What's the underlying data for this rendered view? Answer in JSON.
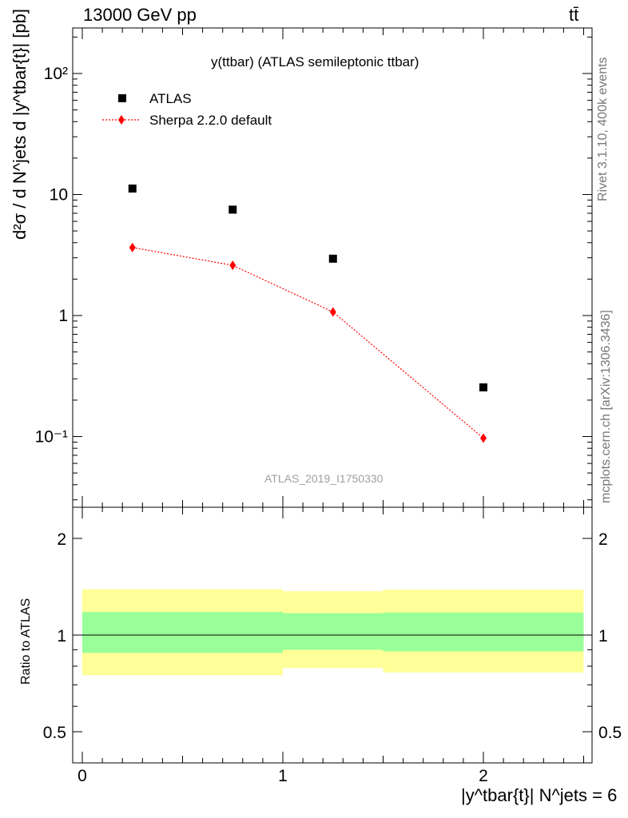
{
  "header": {
    "left": "13000 GeV pp",
    "right": "tt̄"
  },
  "side_labels": {
    "rivet": "Rivet 3.1.10,  400k events",
    "mcplots": "mcplots.cern.ch [arXiv:1306.3436]"
  },
  "chart_data": [
    {
      "type": "scatter",
      "title": "y(ttbar) (ATLAS semileptonic ttbar)",
      "ylabel": "d²σ / d N^jets d |y^tbar{t}| [pb]",
      "yscale": "log",
      "ylim": [
        0.03,
        250
      ],
      "xlim": [
        -0.1,
        2.55
      ],
      "y_ticks": [
        {
          "value": 100,
          "label": "10²"
        },
        {
          "value": 10,
          "label": "10"
        },
        {
          "value": 1,
          "label": "1"
        },
        {
          "value": 0.1,
          "label": "10⁻¹"
        }
      ],
      "watermark": "ATLAS_2019_I1750330",
      "legend_position": "top-left",
      "series": [
        {
          "name": "ATLAS",
          "color": "#000000",
          "marker": "square",
          "x": [
            0.25,
            0.75,
            1.25,
            2.0
          ],
          "y": [
            11.2,
            7.5,
            2.95,
            0.255
          ]
        },
        {
          "name": "Sherpa 2.2.0 default",
          "color": "#ff0000",
          "marker": "diamond",
          "line": "dotted",
          "x": [
            0.25,
            0.75,
            1.25,
            2.0
          ],
          "y": [
            3.65,
            2.6,
            1.07,
            0.097
          ]
        }
      ]
    },
    {
      "type": "area",
      "ylabel": "Ratio to ATLAS",
      "yscale": "log",
      "ylim": [
        0.4,
        2.35
      ],
      "y_ticks": [
        {
          "value": 2,
          "label": "2"
        },
        {
          "value": 1,
          "label": "1"
        },
        {
          "value": 0.5,
          "label": "0.5"
        }
      ],
      "x_ticks": [
        {
          "value": 0,
          "label": "0"
        },
        {
          "value": 1,
          "label": "1"
        },
        {
          "value": 2,
          "label": "2"
        }
      ],
      "reference_line": 1,
      "bands": {
        "edges": [
          0,
          0.5,
          1.0,
          1.5,
          2.5
        ],
        "yellow": {
          "color": "#ffff99",
          "low": [
            0.75,
            0.75,
            0.79,
            0.765
          ],
          "high": [
            1.39,
            1.39,
            1.37,
            1.385
          ]
        },
        "green": {
          "color": "#99ff99",
          "low": [
            0.88,
            0.88,
            0.9,
            0.89
          ],
          "high": [
            1.18,
            1.18,
            1.17,
            1.175
          ]
        }
      },
      "xlabel": "|y^tbar{t}| N^jets = 6"
    }
  ]
}
